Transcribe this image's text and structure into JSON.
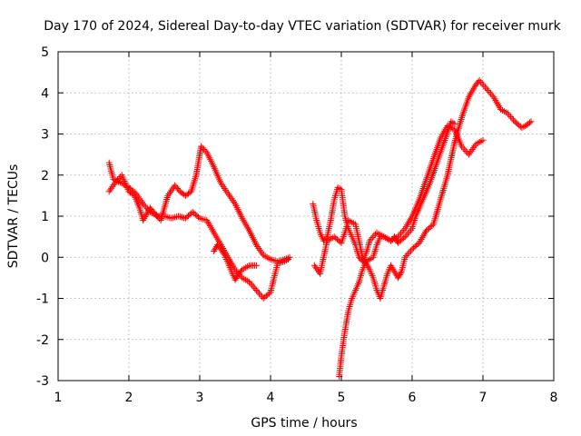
{
  "chart_data": {
    "type": "scatter",
    "title": "Day 170 of 2024, Sidereal Day-to-day VTEC variation (SDTVAR) for receiver murk",
    "xlabel": "GPS time / hours",
    "ylabel": "SDTVAR / TECUs",
    "xlim": [
      1,
      8
    ],
    "ylim": [
      -3,
      5
    ],
    "xticks": [
      "1",
      "2",
      "3",
      "4",
      "5",
      "6",
      "7",
      "8"
    ],
    "yticks": [
      "-3",
      "-2",
      "-1",
      "0",
      "1",
      "2",
      "3",
      "4",
      "5"
    ],
    "grid": true,
    "marker": "+",
    "color": "#ff0000",
    "series": [
      {
        "name": "segment-1",
        "points": [
          [
            1.72,
            1.6
          ],
          [
            1.8,
            1.8
          ],
          [
            1.9,
            2.0
          ],
          [
            1.95,
            1.8
          ],
          [
            2.0,
            1.6
          ],
          [
            2.08,
            1.5
          ],
          [
            2.15,
            1.2
          ],
          [
            2.2,
            0.9
          ],
          [
            2.3,
            1.2
          ],
          [
            2.35,
            1.1
          ],
          [
            2.45,
            0.9
          ],
          [
            2.55,
            1.5
          ],
          [
            2.65,
            1.75
          ],
          [
            2.72,
            1.6
          ],
          [
            2.8,
            1.5
          ],
          [
            2.88,
            1.6
          ],
          [
            2.95,
            2.0
          ],
          [
            3.02,
            2.7
          ],
          [
            3.1,
            2.55
          ],
          [
            3.2,
            2.2
          ],
          [
            3.3,
            1.8
          ],
          [
            3.4,
            1.55
          ],
          [
            3.5,
            1.3
          ],
          [
            3.6,
            0.95
          ],
          [
            3.7,
            0.65
          ],
          [
            3.8,
            0.3
          ],
          [
            3.9,
            0.05
          ],
          [
            4.0,
            -0.05
          ],
          [
            4.1,
            -0.1
          ],
          [
            4.2,
            -0.05
          ],
          [
            4.27,
            0.0
          ]
        ]
      },
      {
        "name": "segment-2",
        "points": [
          [
            1.72,
            2.3
          ],
          [
            1.78,
            1.9
          ],
          [
            1.9,
            1.8
          ],
          [
            2.0,
            1.7
          ],
          [
            2.1,
            1.55
          ],
          [
            2.2,
            1.3
          ],
          [
            2.3,
            1.1
          ],
          [
            2.4,
            1.0
          ],
          [
            2.5,
            1.0
          ],
          [
            2.6,
            0.95
          ],
          [
            2.7,
            1.0
          ],
          [
            2.8,
            0.95
          ],
          [
            2.9,
            1.1
          ],
          [
            3.0,
            0.95
          ],
          [
            3.1,
            0.9
          ],
          [
            3.2,
            0.6
          ],
          [
            3.3,
            0.3
          ],
          [
            3.4,
            0.0
          ],
          [
            3.5,
            -0.3
          ],
          [
            3.6,
            -0.5
          ],
          [
            3.7,
            -0.6
          ],
          [
            3.8,
            -0.8
          ],
          [
            3.9,
            -1.0
          ],
          [
            4.0,
            -0.85
          ],
          [
            4.05,
            -0.5
          ],
          [
            4.1,
            -0.15
          ],
          [
            4.2,
            -0.1
          ],
          [
            4.25,
            -0.05
          ]
        ]
      },
      {
        "name": "segment-3",
        "points": [
          [
            3.2,
            0.15
          ],
          [
            3.25,
            0.3
          ],
          [
            3.3,
            0.2
          ],
          [
            3.35,
            0.05
          ],
          [
            3.4,
            -0.15
          ],
          [
            3.45,
            -0.35
          ],
          [
            3.5,
            -0.55
          ],
          [
            3.55,
            -0.4
          ],
          [
            3.6,
            -0.3
          ],
          [
            3.65,
            -0.25
          ],
          [
            3.7,
            -0.2
          ],
          [
            3.8,
            -0.2
          ]
        ]
      },
      {
        "name": "segment-4",
        "points": [
          [
            4.6,
            1.3
          ],
          [
            4.65,
            0.9
          ],
          [
            4.7,
            0.6
          ],
          [
            4.75,
            0.4
          ],
          [
            4.8,
            0.5
          ],
          [
            4.85,
            0.9
          ],
          [
            4.9,
            1.4
          ],
          [
            4.95,
            1.7
          ],
          [
            5.0,
            1.65
          ],
          [
            5.05,
            1.0
          ],
          [
            5.1,
            0.7
          ],
          [
            5.15,
            0.5
          ],
          [
            5.2,
            0.3
          ],
          [
            5.25,
            0.0
          ],
          [
            5.3,
            -0.1
          ],
          [
            5.35,
            0.1
          ],
          [
            5.4,
            0.4
          ],
          [
            5.5,
            0.6
          ],
          [
            5.6,
            0.5
          ],
          [
            5.7,
            0.4
          ],
          [
            5.8,
            0.5
          ],
          [
            5.9,
            0.7
          ],
          [
            6.0,
            1.0
          ],
          [
            6.1,
            1.4
          ],
          [
            6.2,
            1.9
          ],
          [
            6.3,
            2.4
          ],
          [
            6.4,
            2.9
          ],
          [
            6.5,
            3.2
          ],
          [
            6.6,
            3.1
          ],
          [
            6.7,
            2.7
          ],
          [
            6.8,
            2.5
          ],
          [
            6.9,
            2.75
          ],
          [
            7.0,
            2.85
          ]
        ]
      },
      {
        "name": "segment-5",
        "points": [
          [
            4.62,
            -0.2
          ],
          [
            4.7,
            -0.4
          ],
          [
            4.75,
            0.0
          ],
          [
            4.8,
            0.4
          ],
          [
            4.9,
            0.5
          ],
          [
            5.0,
            0.35
          ],
          [
            5.05,
            0.6
          ],
          [
            5.1,
            0.9
          ],
          [
            5.2,
            0.8
          ],
          [
            5.25,
            0.4
          ],
          [
            5.3,
            0.0
          ],
          [
            5.4,
            -0.3
          ],
          [
            5.45,
            -0.5
          ],
          [
            5.5,
            -0.8
          ],
          [
            5.55,
            -1.0
          ],
          [
            5.6,
            -0.7
          ],
          [
            5.65,
            -0.4
          ],
          [
            5.7,
            -0.2
          ],
          [
            5.8,
            -0.5
          ],
          [
            5.85,
            -0.35
          ],
          [
            5.9,
            0.0
          ],
          [
            6.0,
            0.2
          ],
          [
            6.1,
            0.35
          ],
          [
            6.2,
            0.65
          ],
          [
            6.3,
            0.8
          ],
          [
            6.4,
            1.4
          ],
          [
            6.5,
            2.0
          ],
          [
            6.6,
            2.8
          ],
          [
            6.7,
            3.4
          ],
          [
            6.8,
            3.9
          ],
          [
            6.9,
            4.2
          ],
          [
            6.95,
            4.3
          ],
          [
            7.05,
            4.1
          ],
          [
            7.15,
            3.9
          ],
          [
            7.25,
            3.6
          ],
          [
            7.35,
            3.5
          ],
          [
            7.45,
            3.3
          ],
          [
            7.55,
            3.15
          ],
          [
            7.6,
            3.2
          ],
          [
            7.68,
            3.3
          ]
        ]
      },
      {
        "name": "segment-6",
        "points": [
          [
            4.97,
            -2.9
          ],
          [
            5.0,
            -2.4
          ],
          [
            5.05,
            -1.8
          ],
          [
            5.1,
            -1.3
          ],
          [
            5.15,
            -1.0
          ],
          [
            5.2,
            -0.8
          ],
          [
            5.25,
            -0.6
          ],
          [
            5.3,
            -0.3
          ],
          [
            5.35,
            -0.1
          ],
          [
            5.45,
            0.0
          ],
          [
            5.5,
            0.3
          ],
          [
            5.55,
            0.5
          ],
          [
            5.6,
            0.5
          ],
          [
            5.7,
            0.4
          ],
          [
            5.75,
            0.5
          ],
          [
            5.8,
            0.35
          ],
          [
            5.9,
            0.5
          ],
          [
            6.0,
            0.7
          ],
          [
            6.05,
            1.0
          ],
          [
            6.15,
            1.4
          ],
          [
            6.25,
            1.8
          ],
          [
            6.35,
            2.3
          ],
          [
            6.45,
            2.8
          ],
          [
            6.55,
            3.3
          ],
          [
            6.6,
            3.25
          ]
        ]
      }
    ]
  }
}
